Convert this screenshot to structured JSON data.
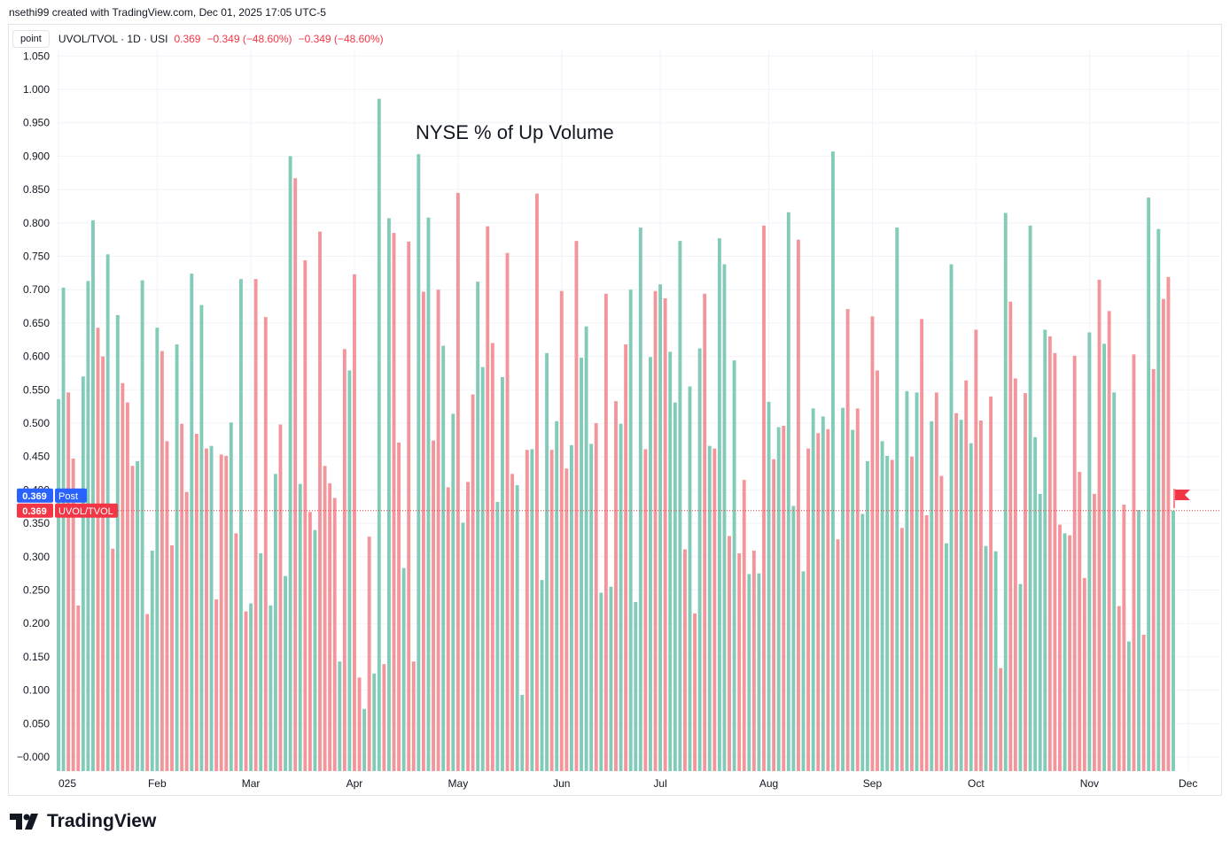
{
  "caption": "nsethi99 created with TradingView.com, Dec 01, 2025 17:05 UTC-5",
  "legend": {
    "interval_button": "point",
    "symbol": "UVOL/TVOL · 1D · USI",
    "last": "0.369",
    "change": "−0.349 (−48.60%)",
    "change2": "−0.349 (−48.60%)"
  },
  "logo": {
    "text": "TradingView",
    "icon": "tradingview-logo-icon"
  },
  "colors": {
    "up": "#83cbb9",
    "down": "#f3969c",
    "post_tag": "#2962ff",
    "last_tag": "#f23645",
    "grid": "#f0f3fa"
  },
  "chart_data": {
    "type": "bar",
    "title": "NYSE % of Up Volume",
    "series_name": "UVOL/TVOL",
    "ylim": [
      -0.015,
      1.06
    ],
    "yticks": [
      "1.050",
      "1.000",
      "0.950",
      "0.900",
      "0.850",
      "0.800",
      "0.750",
      "0.700",
      "0.650",
      "0.600",
      "0.550",
      "0.500",
      "0.450",
      "0.400",
      "0.350",
      "0.300",
      "0.250",
      "0.200",
      "0.150",
      "0.100",
      "0.050",
      "−0.000"
    ],
    "ytick_values": [
      1.05,
      1.0,
      0.95,
      0.9,
      0.85,
      0.8,
      0.75,
      0.7,
      0.65,
      0.6,
      0.55,
      0.5,
      0.45,
      0.4,
      0.35,
      0.3,
      0.25,
      0.2,
      0.15,
      0.1,
      0.05,
      0
    ],
    "xticks": [
      {
        "label": "025",
        "index": 0
      },
      {
        "label": "Feb",
        "index": 20
      },
      {
        "label": "Mar",
        "index": 39
      },
      {
        "label": "Apr",
        "index": 60
      },
      {
        "label": "May",
        "index": 81
      },
      {
        "label": "Jun",
        "index": 102
      },
      {
        "label": "Jul",
        "index": 122
      },
      {
        "label": "Aug",
        "index": 144
      },
      {
        "label": "Sep",
        "index": 165
      },
      {
        "label": "Oct",
        "index": 186
      },
      {
        "label": "Nov",
        "index": 209
      },
      {
        "label": "Dec",
        "index": 229
      }
    ],
    "values": [
      0.536,
      0.703,
      0.546,
      0.447,
      0.227,
      0.57,
      0.713,
      0.804,
      0.643,
      0.6,
      0.753,
      0.312,
      0.662,
      0.56,
      0.531,
      0.436,
      0.443,
      0.714,
      0.214,
      0.309,
      0.643,
      0.608,
      0.473,
      0.317,
      0.618,
      0.499,
      0.397,
      0.724,
      0.484,
      0.677,
      0.462,
      0.466,
      0.236,
      0.453,
      0.451,
      0.501,
      0.335,
      0.716,
      0.218,
      0.23,
      0.716,
      0.305,
      0.659,
      0.227,
      0.424,
      0.498,
      0.271,
      0.9,
      0.867,
      0.409,
      0.744,
      0.367,
      0.34,
      0.787,
      0.436,
      0.41,
      0.388,
      0.143,
      0.611,
      0.579,
      0.723,
      0.119,
      0.072,
      0.33,
      0.125,
      0.986,
      0.139,
      0.807,
      0.785,
      0.471,
      0.283,
      0.772,
      0.143,
      0.903,
      0.697,
      0.808,
      0.474,
      0.7,
      0.616,
      0.404,
      0.514,
      0.845,
      0.351,
      0.412,
      0.543,
      0.712,
      0.584,
      0.795,
      0.62,
      0.382,
      0.569,
      0.755,
      0.424,
      0.407,
      0.093,
      0.46,
      0.461,
      0.844,
      0.265,
      0.605,
      0.46,
      0.503,
      0.698,
      0.432,
      0.467,
      0.773,
      0.598,
      0.645,
      0.469,
      0.5,
      0.246,
      0.694,
      0.255,
      0.533,
      0.499,
      0.618,
      0.7,
      0.232,
      0.793,
      0.461,
      0.599,
      0.698,
      0.708,
      0.687,
      0.607,
      0.531,
      0.773,
      0.311,
      0.555,
      0.215,
      0.612,
      0.694,
      0.466,
      0.462,
      0.777,
      0.738,
      0.331,
      0.594,
      0.305,
      0.415,
      0.274,
      0.309,
      0.275,
      0.796,
      0.532,
      0.446,
      0.494,
      0.496,
      0.816,
      0.376,
      0.775,
      0.278,
      0.462,
      0.522,
      0.485,
      0.51,
      0.491,
      0.907,
      0.326,
      0.523,
      0.671,
      0.49,
      0.522,
      0.364,
      0.443,
      0.66,
      0.579,
      0.473,
      0.451,
      0.445,
      0.793,
      0.343,
      0.548,
      0.45,
      0.546,
      0.656,
      0.362,
      0.503,
      0.546,
      0.421,
      0.32,
      0.738,
      0.515,
      0.505,
      0.564,
      0.47,
      0.64,
      0.504,
      0.316,
      0.54,
      0.308,
      0.133,
      0.815,
      0.682,
      0.567,
      0.259,
      0.545,
      0.796,
      0.479,
      0.394,
      0.64,
      0.63,
      0.605,
      0.348,
      0.335,
      0.332,
      0.601,
      0.427,
      0.268,
      0.636,
      0.394,
      0.715,
      0.619,
      0.668,
      0.546,
      0.226,
      0.378,
      0.173,
      0.603,
      0.37,
      0.183,
      0.838,
      0.581,
      0.791,
      0.686,
      0.719,
      0.369
    ],
    "directions": "UUDDDUUUDDUDUDDDUUDUUDDDUDDUDUDUDDDUDUDUDUDUUDUUDUDDUDDDDUDUDDUDUUDUDDUDDUDUDDUDUDUDDUUDDUUDDUUDUDUUDUDDUDUUUDUDUDUDUUUDUDUDUUUDUDUDUDUUDUDDUDUDUDUDUUDUDUDUDUDUDUDUUDDUUDUDUDUDDUDDUUDUDUDDUDUDUDDUDUUUUDDDUDDDDUDDUDUDDUDUDUDUDDUUUUD",
    "post_label": "Post",
    "last_value_label": "0.369",
    "last_series_label": "UVOL/TVOL"
  }
}
